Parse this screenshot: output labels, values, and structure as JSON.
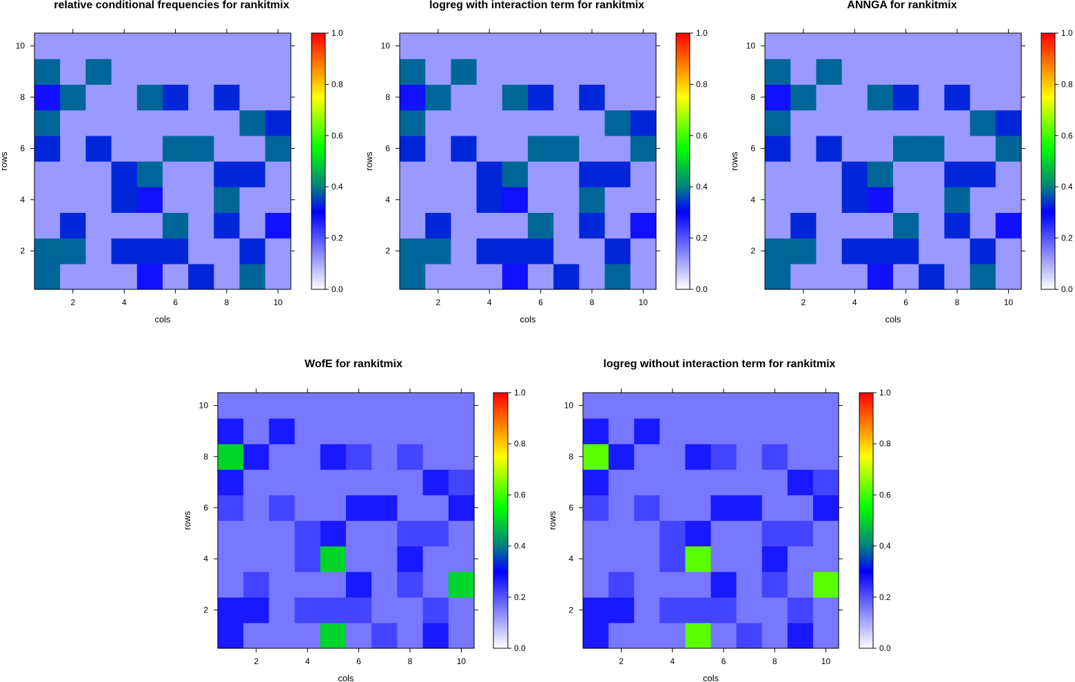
{
  "figure": {
    "colorbar": {
      "ticks": [
        "0.0",
        "0.2",
        "0.4",
        "0.6",
        "0.8",
        "1.0"
      ],
      "range": [
        0,
        1
      ]
    },
    "colorscale_stops": [
      {
        "v": 0.0,
        "color": "#ffffff"
      },
      {
        "v": 0.3,
        "color": "#0000ff"
      },
      {
        "v": 0.4,
        "color": "#008080"
      },
      {
        "v": 0.55,
        "color": "#00ff00"
      },
      {
        "v": 0.75,
        "color": "#ffff00"
      },
      {
        "v": 1.0,
        "color": "#ff0000"
      }
    ]
  },
  "chart_data": [
    {
      "type": "heatmap",
      "title": "relative conditional frequencies for rankitmix",
      "xlabel": "cols",
      "ylabel": "rows",
      "x_ticks": [
        "2",
        "4",
        "6",
        "8",
        "10"
      ],
      "y_ticks": [
        "2",
        "4",
        "6",
        "8",
        "10"
      ],
      "xlim": [
        0.5,
        10.5
      ],
      "ylim": [
        0.5,
        10.5
      ],
      "zlim": [
        0,
        1
      ],
      "values": [
        [
          0.38,
          0.12,
          0.12,
          0.12,
          0.28,
          0.12,
          0.33,
          0.12,
          0.38,
          0.12
        ],
        [
          0.38,
          0.38,
          0.12,
          0.33,
          0.33,
          0.33,
          0.12,
          0.12,
          0.33,
          0.12
        ],
        [
          0.12,
          0.33,
          0.12,
          0.12,
          0.12,
          0.38,
          0.12,
          0.33,
          0.12,
          0.28
        ],
        [
          0.12,
          0.12,
          0.12,
          0.33,
          0.28,
          0.12,
          0.12,
          0.38,
          0.12,
          0.12
        ],
        [
          0.12,
          0.12,
          0.12,
          0.33,
          0.38,
          0.12,
          0.12,
          0.33,
          0.33,
          0.12
        ],
        [
          0.33,
          0.12,
          0.33,
          0.12,
          0.12,
          0.38,
          0.38,
          0.12,
          0.12,
          0.38
        ],
        [
          0.38,
          0.12,
          0.12,
          0.12,
          0.12,
          0.12,
          0.12,
          0.12,
          0.38,
          0.33
        ],
        [
          0.28,
          0.38,
          0.12,
          0.12,
          0.38,
          0.33,
          0.12,
          0.33,
          0.12,
          0.12
        ],
        [
          0.38,
          0.12,
          0.38,
          0.12,
          0.12,
          0.12,
          0.12,
          0.12,
          0.12,
          0.12
        ],
        [
          0.12,
          0.12,
          0.12,
          0.12,
          0.12,
          0.12,
          0.12,
          0.12,
          0.12,
          0.12
        ]
      ]
    },
    {
      "type": "heatmap",
      "title": "logreg with interaction term for rankitmix",
      "xlabel": "cols",
      "ylabel": "rows",
      "x_ticks": [
        "2",
        "4",
        "6",
        "8",
        "10"
      ],
      "y_ticks": [
        "2",
        "4",
        "6",
        "8",
        "10"
      ],
      "xlim": [
        0.5,
        10.5
      ],
      "ylim": [
        0.5,
        10.5
      ],
      "zlim": [
        0,
        1
      ],
      "values": [
        [
          0.38,
          0.12,
          0.12,
          0.12,
          0.28,
          0.12,
          0.33,
          0.12,
          0.38,
          0.12
        ],
        [
          0.38,
          0.38,
          0.12,
          0.33,
          0.33,
          0.33,
          0.12,
          0.12,
          0.33,
          0.12
        ],
        [
          0.12,
          0.33,
          0.12,
          0.12,
          0.12,
          0.38,
          0.12,
          0.33,
          0.12,
          0.28
        ],
        [
          0.12,
          0.12,
          0.12,
          0.33,
          0.28,
          0.12,
          0.12,
          0.38,
          0.12,
          0.12
        ],
        [
          0.12,
          0.12,
          0.12,
          0.33,
          0.38,
          0.12,
          0.12,
          0.33,
          0.33,
          0.12
        ],
        [
          0.33,
          0.12,
          0.33,
          0.12,
          0.12,
          0.38,
          0.38,
          0.12,
          0.12,
          0.38
        ],
        [
          0.38,
          0.12,
          0.12,
          0.12,
          0.12,
          0.12,
          0.12,
          0.12,
          0.38,
          0.33
        ],
        [
          0.28,
          0.38,
          0.12,
          0.12,
          0.38,
          0.33,
          0.12,
          0.33,
          0.12,
          0.12
        ],
        [
          0.38,
          0.12,
          0.38,
          0.12,
          0.12,
          0.12,
          0.12,
          0.12,
          0.12,
          0.12
        ],
        [
          0.12,
          0.12,
          0.12,
          0.12,
          0.12,
          0.12,
          0.12,
          0.12,
          0.12,
          0.12
        ]
      ]
    },
    {
      "type": "heatmap",
      "title": "ANNGA for rankitmix",
      "xlabel": "cols",
      "ylabel": "rows",
      "x_ticks": [
        "2",
        "4",
        "6",
        "8",
        "10"
      ],
      "y_ticks": [
        "2",
        "4",
        "6",
        "8",
        "10"
      ],
      "xlim": [
        0.5,
        10.5
      ],
      "ylim": [
        0.5,
        10.5
      ],
      "zlim": [
        0,
        1
      ],
      "values": [
        [
          0.38,
          0.12,
          0.12,
          0.12,
          0.28,
          0.12,
          0.33,
          0.12,
          0.38,
          0.12
        ],
        [
          0.38,
          0.38,
          0.12,
          0.33,
          0.33,
          0.33,
          0.12,
          0.12,
          0.33,
          0.12
        ],
        [
          0.12,
          0.33,
          0.12,
          0.12,
          0.12,
          0.38,
          0.12,
          0.33,
          0.12,
          0.28
        ],
        [
          0.12,
          0.12,
          0.12,
          0.33,
          0.28,
          0.12,
          0.12,
          0.38,
          0.12,
          0.12
        ],
        [
          0.12,
          0.12,
          0.12,
          0.33,
          0.38,
          0.12,
          0.12,
          0.33,
          0.33,
          0.12
        ],
        [
          0.33,
          0.12,
          0.33,
          0.12,
          0.12,
          0.38,
          0.38,
          0.12,
          0.12,
          0.38
        ],
        [
          0.38,
          0.12,
          0.12,
          0.12,
          0.12,
          0.12,
          0.12,
          0.12,
          0.38,
          0.33
        ],
        [
          0.28,
          0.38,
          0.12,
          0.12,
          0.38,
          0.33,
          0.12,
          0.33,
          0.12,
          0.12
        ],
        [
          0.38,
          0.12,
          0.38,
          0.12,
          0.12,
          0.12,
          0.12,
          0.12,
          0.12,
          0.12
        ],
        [
          0.12,
          0.12,
          0.12,
          0.12,
          0.12,
          0.12,
          0.12,
          0.12,
          0.12,
          0.12
        ]
      ]
    },
    {
      "type": "heatmap",
      "title": "WofE for rankitmix",
      "xlabel": "cols",
      "ylabel": "rows",
      "x_ticks": [
        "2",
        "4",
        "6",
        "8",
        "10"
      ],
      "y_ticks": [
        "2",
        "4",
        "6",
        "8",
        "10"
      ],
      "xlim": [
        0.5,
        10.5
      ],
      "ylim": [
        0.5,
        10.5
      ],
      "zlim": [
        0,
        1
      ],
      "values": [
        [
          0.27,
          0.16,
          0.16,
          0.16,
          0.5,
          0.16,
          0.22,
          0.16,
          0.27,
          0.16
        ],
        [
          0.27,
          0.27,
          0.16,
          0.22,
          0.22,
          0.22,
          0.16,
          0.16,
          0.22,
          0.16
        ],
        [
          0.16,
          0.22,
          0.16,
          0.16,
          0.16,
          0.27,
          0.16,
          0.22,
          0.16,
          0.5
        ],
        [
          0.16,
          0.16,
          0.16,
          0.22,
          0.5,
          0.16,
          0.16,
          0.27,
          0.16,
          0.16
        ],
        [
          0.16,
          0.16,
          0.16,
          0.22,
          0.27,
          0.16,
          0.16,
          0.22,
          0.22,
          0.16
        ],
        [
          0.22,
          0.16,
          0.22,
          0.16,
          0.16,
          0.27,
          0.27,
          0.16,
          0.16,
          0.27
        ],
        [
          0.27,
          0.16,
          0.16,
          0.16,
          0.16,
          0.16,
          0.16,
          0.16,
          0.27,
          0.22
        ],
        [
          0.5,
          0.27,
          0.16,
          0.16,
          0.27,
          0.22,
          0.16,
          0.22,
          0.16,
          0.16
        ],
        [
          0.27,
          0.16,
          0.27,
          0.16,
          0.16,
          0.16,
          0.16,
          0.16,
          0.16,
          0.16
        ],
        [
          0.16,
          0.16,
          0.16,
          0.16,
          0.16,
          0.16,
          0.16,
          0.16,
          0.16,
          0.16
        ]
      ]
    },
    {
      "type": "heatmap",
      "title": "logreg without interaction term for rankitmix",
      "xlabel": "cols",
      "ylabel": "rows",
      "x_ticks": [
        "2",
        "4",
        "6",
        "8",
        "10"
      ],
      "y_ticks": [
        "2",
        "4",
        "6",
        "8",
        "10"
      ],
      "xlim": [
        0.5,
        10.5
      ],
      "ylim": [
        0.5,
        10.5
      ],
      "zlim": [
        0,
        1
      ],
      "values": [
        [
          0.27,
          0.16,
          0.16,
          0.16,
          0.62,
          0.16,
          0.22,
          0.16,
          0.27,
          0.16
        ],
        [
          0.27,
          0.27,
          0.16,
          0.22,
          0.22,
          0.22,
          0.16,
          0.16,
          0.22,
          0.16
        ],
        [
          0.16,
          0.22,
          0.16,
          0.16,
          0.16,
          0.27,
          0.16,
          0.22,
          0.16,
          0.62
        ],
        [
          0.16,
          0.16,
          0.16,
          0.22,
          0.62,
          0.16,
          0.16,
          0.27,
          0.16,
          0.16
        ],
        [
          0.16,
          0.16,
          0.16,
          0.22,
          0.27,
          0.16,
          0.16,
          0.22,
          0.22,
          0.16
        ],
        [
          0.22,
          0.16,
          0.22,
          0.16,
          0.16,
          0.27,
          0.27,
          0.16,
          0.16,
          0.27
        ],
        [
          0.27,
          0.16,
          0.16,
          0.16,
          0.16,
          0.16,
          0.16,
          0.16,
          0.27,
          0.22
        ],
        [
          0.62,
          0.27,
          0.16,
          0.16,
          0.27,
          0.22,
          0.16,
          0.22,
          0.16,
          0.16
        ],
        [
          0.27,
          0.16,
          0.27,
          0.16,
          0.16,
          0.16,
          0.16,
          0.16,
          0.16,
          0.16
        ],
        [
          0.16,
          0.16,
          0.16,
          0.16,
          0.16,
          0.16,
          0.16,
          0.16,
          0.16,
          0.16
        ]
      ]
    }
  ]
}
